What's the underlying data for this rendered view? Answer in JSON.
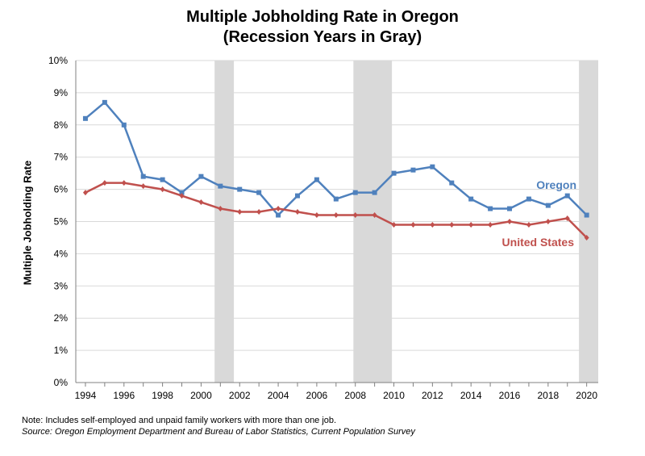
{
  "chart_data": {
    "type": "line",
    "title": "Multiple Jobholding Rate in Oregon",
    "subtitle": "(Recession Years in Gray)",
    "ylabel": "Multiple Jobholding Rate",
    "xlabel": "",
    "ylim": [
      0,
      10
    ],
    "xlim": [
      1993.5,
      2020.6
    ],
    "yticks": [
      "0%",
      "1%",
      "2%",
      "3%",
      "4%",
      "5%",
      "6%",
      "7%",
      "8%",
      "9%",
      "10%"
    ],
    "xticks": [
      "1994",
      "1996",
      "1998",
      "2000",
      "2002",
      "2004",
      "2006",
      "2008",
      "2010",
      "2012",
      "2014",
      "2016",
      "2018",
      "2020"
    ],
    "grid": true,
    "recessions": [
      [
        2000.7,
        2001.7
      ],
      [
        2007.9,
        2009.9
      ],
      [
        2019.6,
        2020.6
      ]
    ],
    "x": [
      1994,
      1995,
      1996,
      1997,
      1998,
      1999,
      2000,
      2001,
      2002,
      2003,
      2004,
      2005,
      2006,
      2007,
      2008,
      2009,
      2010,
      2011,
      2012,
      2013,
      2014,
      2015,
      2016,
      2017,
      2018,
      2019,
      2020
    ],
    "series": [
      {
        "name": "Oregon",
        "color": "#4f81bd",
        "marker": "square",
        "values": [
          8.2,
          8.7,
          8.0,
          6.4,
          6.3,
          5.9,
          6.4,
          6.1,
          6.0,
          5.9,
          5.2,
          5.8,
          6.3,
          5.7,
          5.9,
          5.9,
          6.5,
          6.6,
          6.7,
          6.2,
          5.7,
          5.4,
          5.4,
          5.7,
          5.5,
          5.8,
          5.2
        ]
      },
      {
        "name": "United States",
        "color": "#c0504d",
        "marker": "diamond",
        "values": [
          5.9,
          6.2,
          6.2,
          6.1,
          6.0,
          5.8,
          5.6,
          5.4,
          5.3,
          5.3,
          5.4,
          5.3,
          5.2,
          5.2,
          5.2,
          5.2,
          4.9,
          4.9,
          4.9,
          4.9,
          4.9,
          4.9,
          5.0,
          4.9,
          5.0,
          5.1,
          4.5
        ]
      }
    ]
  },
  "footer": {
    "note": "Note: Includes self-employed and unpaid family workers with more than one job.",
    "source": "Source: Oregon Employment Department and Bureau of Labor Statistics, Current Population Survey"
  }
}
